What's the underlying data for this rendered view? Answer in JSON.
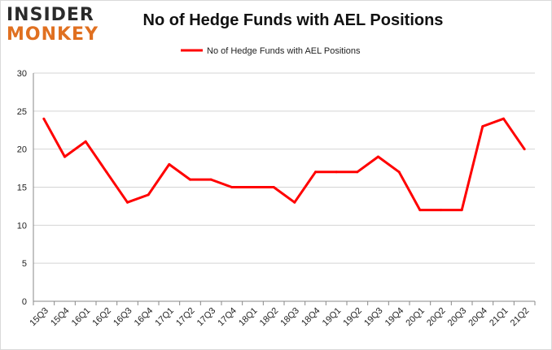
{
  "logo": {
    "line1": "INSIDER",
    "line2": "MONKEY"
  },
  "chart_data": {
    "type": "line",
    "title": "No of Hedge Funds with AEL Positions",
    "xlabel": "",
    "ylabel": "",
    "categories": [
      "15Q3",
      "15Q4",
      "16Q1",
      "16Q2",
      "16Q3",
      "16Q4",
      "17Q1",
      "17Q2",
      "17Q3",
      "17Q4",
      "18Q1",
      "18Q2",
      "18Q3",
      "18Q4",
      "19Q1",
      "19Q2",
      "19Q3",
      "19Q4",
      "20Q1",
      "20Q2",
      "20Q3",
      "20Q4",
      "21Q1",
      "21Q2"
    ],
    "series": [
      {
        "name": "No of Hedge Funds with AEL Positions",
        "color": "#ff0000",
        "values": [
          24,
          19,
          21,
          17,
          13,
          14,
          18,
          16,
          16,
          15,
          15,
          15,
          13,
          17,
          17,
          17,
          19,
          17,
          12,
          12,
          12,
          23,
          24,
          20
        ]
      }
    ],
    "ylim": [
      0,
      30
    ],
    "yticks": [
      0,
      5,
      10,
      15,
      20,
      25,
      30
    ],
    "grid": true,
    "legend": "top-center"
  }
}
